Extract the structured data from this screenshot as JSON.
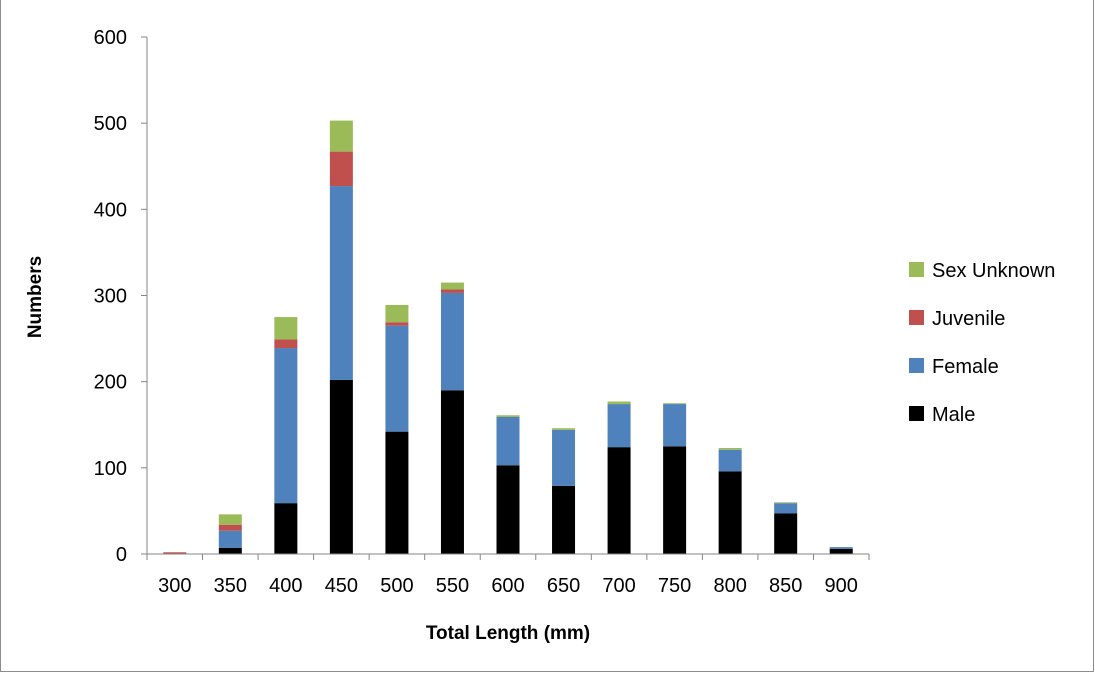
{
  "chart_data": {
    "type": "bar",
    "stacked": true,
    "categories": [
      "300",
      "350",
      "400",
      "450",
      "500",
      "550",
      "600",
      "650",
      "700",
      "750",
      "800",
      "850",
      "900"
    ],
    "series": [
      {
        "name": "Male",
        "color": "#000000",
        "values": [
          0,
          7,
          59,
          202,
          142,
          190,
          103,
          79,
          124,
          125,
          96,
          47,
          6
        ]
      },
      {
        "name": "Female",
        "color": "#4f81bd",
        "values": [
          0,
          20,
          180,
          225,
          123,
          113,
          56,
          65,
          50,
          49,
          25,
          12,
          2
        ]
      },
      {
        "name": "Juvenile",
        "color": "#c0504d",
        "values": [
          2,
          7,
          10,
          40,
          4,
          4,
          0,
          0,
          0,
          0,
          0,
          0,
          0
        ]
      },
      {
        "name": "Sex Unknown",
        "color": "#9bbb59",
        "values": [
          0,
          12,
          26,
          36,
          20,
          8,
          2,
          2,
          3,
          1,
          2,
          1,
          0
        ]
      }
    ],
    "xlabel": "Total Length (mm)",
    "ylabel": "Numbers",
    "ylim": [
      0,
      600
    ],
    "yticks": [
      0,
      100,
      200,
      300,
      400,
      500,
      600
    ],
    "grid": false,
    "legend_position": "right",
    "legend_order": [
      "Sex Unknown",
      "Juvenile",
      "Female",
      "Male"
    ]
  }
}
